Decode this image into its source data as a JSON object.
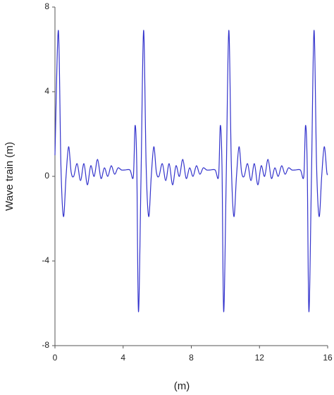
{
  "chart_data": {
    "type": "line",
    "xlabel": "(m)",
    "ylabel": "Wave train (m)",
    "xlim": [
      0,
      16
    ],
    "xticks": [
      0,
      4,
      8,
      12,
      16
    ],
    "ylim": [
      -8,
      8
    ],
    "yticks": [
      -8,
      -4,
      0,
      4,
      8
    ],
    "grid": false,
    "series": [
      {
        "color": "#3333cc",
        "x": [
          0,
          0.2,
          0.35,
          0.5,
          0.65,
          0.8,
          0.95,
          1.1,
          1.3,
          1.5,
          1.7,
          1.9,
          2.1,
          2.3,
          2.5,
          2.7,
          2.9,
          3.1,
          3.3,
          3.5,
          3.7,
          3.9,
          4.1,
          4.4,
          4.6,
          4.7,
          4.8,
          4.9,
          5.05,
          5.2,
          5.35,
          5.5,
          5.65,
          5.8,
          5.95,
          6.1,
          6.3,
          6.5,
          6.7,
          6.9,
          7.1,
          7.3,
          7.5,
          7.7,
          7.9,
          8.1,
          8.3,
          8.5,
          8.7,
          8.9,
          9.1,
          9.4,
          9.6,
          9.7,
          9.8,
          9.9,
          10.05,
          10.2,
          10.35,
          10.5,
          10.65,
          10.8,
          10.95,
          11.1,
          11.3,
          11.5,
          11.7,
          11.9,
          12.1,
          12.3,
          12.5,
          12.7,
          12.9,
          13.1,
          13.3,
          13.5,
          13.7,
          13.9,
          14.1,
          14.4,
          14.6,
          14.7,
          14.8,
          14.9,
          15.05,
          15.2,
          15.35,
          15.5,
          15.65,
          15.8,
          15.95,
          16
        ],
        "values": [
          1.0,
          6.9,
          0.5,
          -1.9,
          0.0,
          1.4,
          0.2,
          0.0,
          0.6,
          -0.2,
          0.6,
          -0.4,
          0.5,
          0.0,
          0.8,
          -0.1,
          0.4,
          0.0,
          0.5,
          0.1,
          0.4,
          0.3,
          0.3,
          0.3,
          0.0,
          2.4,
          0.5,
          -6.4,
          0.0,
          6.9,
          0.5,
          -1.9,
          0.0,
          1.4,
          0.2,
          0.0,
          0.6,
          -0.2,
          0.6,
          -0.4,
          0.5,
          0.0,
          0.8,
          -0.1,
          0.4,
          0.0,
          0.5,
          0.1,
          0.4,
          0.3,
          0.3,
          0.3,
          0.0,
          2.4,
          0.5,
          -6.4,
          0.0,
          6.9,
          0.5,
          -1.9,
          0.0,
          1.4,
          0.2,
          0.0,
          0.6,
          -0.2,
          0.6,
          -0.4,
          0.5,
          0.0,
          0.8,
          -0.1,
          0.4,
          0.0,
          0.5,
          0.1,
          0.4,
          0.3,
          0.3,
          0.3,
          0.0,
          2.4,
          0.5,
          -6.4,
          0.0,
          6.9,
          0.5,
          -1.9,
          0.0,
          1.4,
          0.2,
          0.1
        ]
      }
    ]
  }
}
